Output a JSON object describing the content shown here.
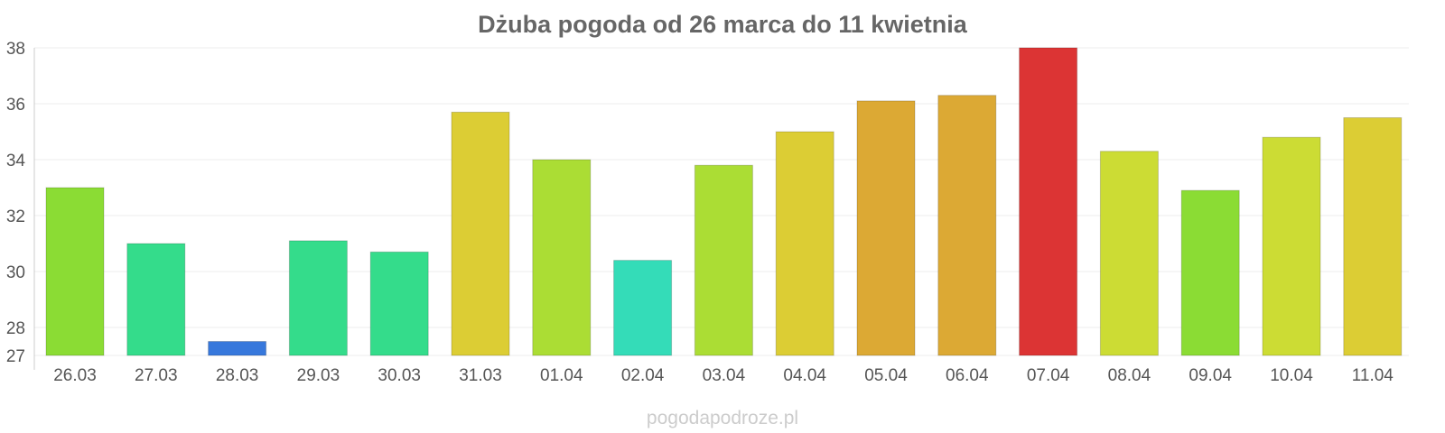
{
  "chart_data": {
    "type": "bar",
    "title": "Dżuba pogoda od 26 marca do 11 kwietnia",
    "xlabel": "",
    "ylabel": "",
    "ylim": [
      27,
      38
    ],
    "yticks": [
      27,
      28,
      30,
      32,
      34,
      36,
      38
    ],
    "grid": true,
    "categories": [
      "26.03",
      "27.03",
      "28.03",
      "29.03",
      "30.03",
      "31.03",
      "01.04",
      "02.04",
      "03.04",
      "04.04",
      "05.04",
      "06.04",
      "07.04",
      "08.04",
      "09.04",
      "10.04",
      "11.04"
    ],
    "values": [
      33.0,
      31.0,
      27.5,
      31.1,
      30.7,
      35.7,
      34.0,
      30.4,
      33.8,
      35.0,
      36.1,
      36.3,
      38.0,
      34.3,
      32.9,
      34.8,
      35.5
    ],
    "colors": [
      "#8bdc34",
      "#34dc8b",
      "#3778dc",
      "#34dc8b",
      "#34dc8b",
      "#dccd34",
      "#abdd34",
      "#34dcb8",
      "#abdd34",
      "#dccd34",
      "#dca934",
      "#dca934",
      "#dc3434",
      "#ccdc34",
      "#8bdc34",
      "#ccdc34",
      "#dccd34"
    ],
    "watermark": "pogodapodroze.pl"
  }
}
